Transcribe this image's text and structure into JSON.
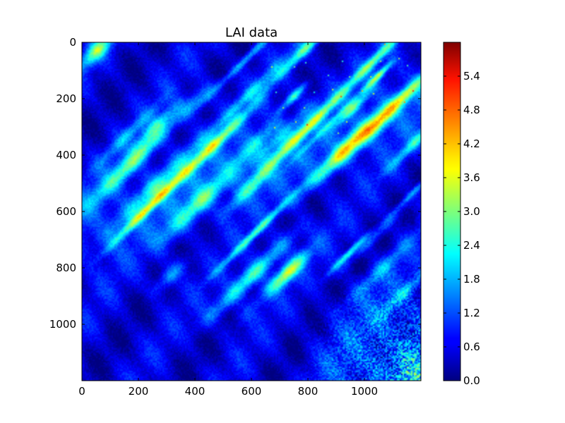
{
  "chart_data": {
    "type": "heatmap",
    "title": "LAI data",
    "xlabel": "",
    "ylabel": "",
    "x_range": [
      0,
      1200
    ],
    "y_range": [
      0,
      1200
    ],
    "y_inverted": true,
    "x_ticks": [
      "0",
      "200",
      "400",
      "600",
      "800",
      "1000"
    ],
    "y_ticks": [
      "0",
      "200",
      "400",
      "600",
      "800",
      "1000"
    ],
    "colormap": "jet",
    "colorbar": {
      "range": [
        0.0,
        6.0
      ],
      "ticks": [
        "0.0",
        "0.6",
        "1.2",
        "1.8",
        "2.4",
        "3.0",
        "3.6",
        "4.2",
        "4.8",
        "5.4"
      ]
    },
    "grid": false,
    "legend": "none"
  }
}
